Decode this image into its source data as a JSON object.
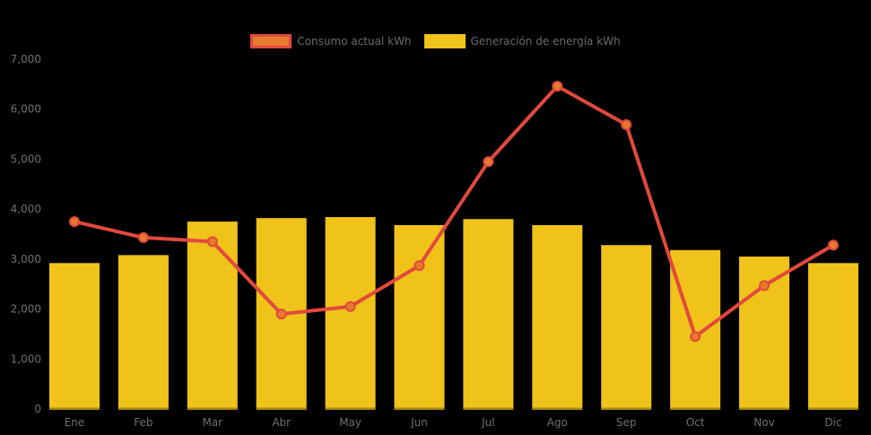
{
  "background_color": "#000000",
  "text_color": "#6b6b6b",
  "chart_data": {
    "type": "combo-bar-line",
    "categories": [
      "Ene",
      "Feb",
      "Mar",
      "Abr",
      "May",
      "Jun",
      "Jul",
      "Ago",
      "Sep",
      "Oct",
      "Nov",
      "Dic"
    ],
    "series": [
      {
        "name": "Consumo actual kWh",
        "type": "line",
        "color": "#e2493d",
        "marker_color": "#e87a2e",
        "values": [
          3750,
          3430,
          3350,
          1900,
          2050,
          2870,
          4950,
          6460,
          5690,
          1450,
          2470,
          3280
        ]
      },
      {
        "name": "Generación de energía kWh",
        "type": "bar",
        "color": "#efc319",
        "values": [
          2920,
          3080,
          3750,
          3820,
          3840,
          3680,
          3800,
          3680,
          3280,
          3180,
          3050,
          2920
        ]
      }
    ],
    "y_axis": {
      "min": 0,
      "max": 7000,
      "interval": 1000,
      "tick_labels": [
        "0",
        "1,000",
        "2,000",
        "3,000",
        "4,000",
        "5,000",
        "6,000",
        "7,000"
      ]
    },
    "grid": false,
    "legend_position": "top-center",
    "axis_label_color": "#6f6f6f"
  }
}
